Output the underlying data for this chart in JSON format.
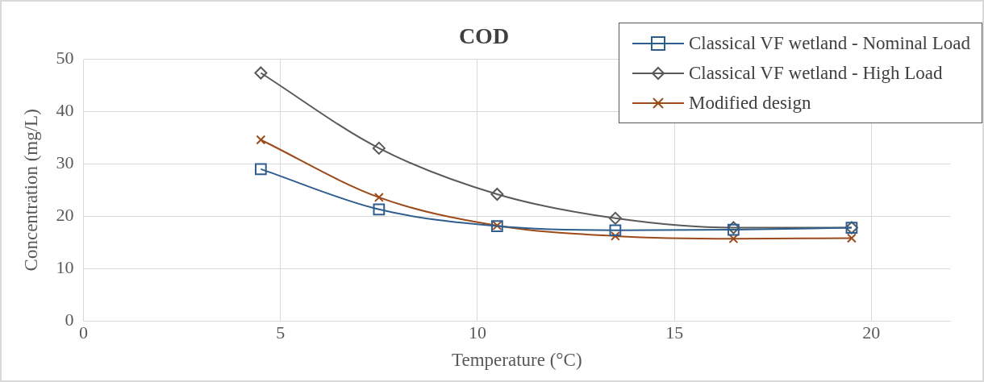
{
  "chart_data": {
    "type": "line",
    "title": "COD",
    "xlabel": "Temperature (°C)",
    "ylabel": "Concentration (mg/L)",
    "x": [
      4.5,
      7.5,
      10.5,
      13.5,
      16.5,
      19.5
    ],
    "series": [
      {
        "name": "Classical VF wetland - Nominal Load",
        "color": "#2e5d8e",
        "marker": "square",
        "values": [
          29.0,
          21.3,
          18.1,
          17.3,
          17.4,
          17.8
        ]
      },
      {
        "name": "Classical VF wetland - High Load",
        "color": "#595959",
        "marker": "diamond",
        "values": [
          47.4,
          33.0,
          24.2,
          19.6,
          17.8,
          17.8
        ]
      },
      {
        "name": "Modified design",
        "color": "#9c4a1a",
        "marker": "cross",
        "values": [
          34.6,
          23.6,
          18.2,
          16.2,
          15.7,
          15.8
        ]
      }
    ],
    "xlim": [
      0,
      22
    ],
    "xticks": [
      0,
      5,
      10,
      15,
      20
    ],
    "ylim": [
      0,
      50
    ],
    "yticks": [
      0,
      10,
      20,
      30,
      40,
      50
    ],
    "grid": true,
    "legend": "top right"
  }
}
